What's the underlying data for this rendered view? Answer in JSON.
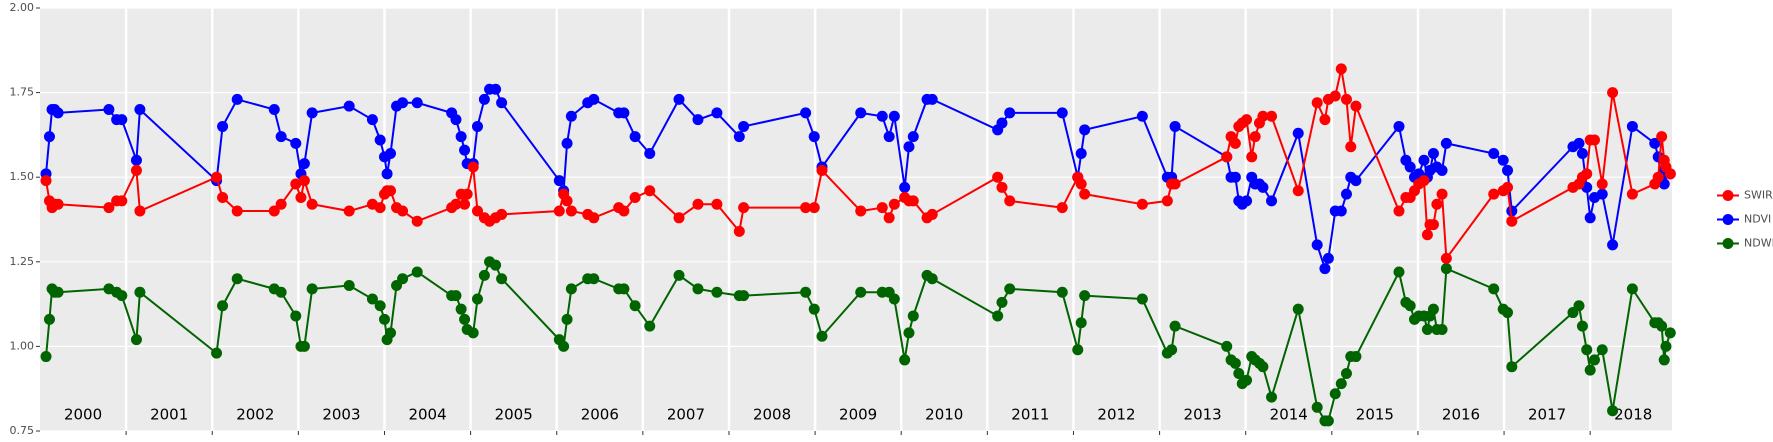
{
  "chart_data": {
    "type": "line",
    "x": [
      2000.07,
      2000.11,
      2000.14,
      2000.17,
      2000.21,
      2000.8,
      2000.89,
      2000.95,
      2001.12,
      2001.16,
      2002.05,
      2002.12,
      2002.29,
      2002.72,
      2002.8,
      2002.97,
      2003.03,
      2003.07,
      2003.16,
      2003.59,
      2003.86,
      2003.95,
      2004.0,
      2004.03,
      2004.07,
      2004.14,
      2004.21,
      2004.38,
      2004.78,
      2004.83,
      2004.89,
      2004.93,
      2004.96,
      2005.03,
      2005.08,
      2005.16,
      2005.22,
      2005.29,
      2005.36,
      2006.03,
      2006.08,
      2006.12,
      2006.17,
      2006.36,
      2006.43,
      2006.72,
      2006.78,
      2006.91,
      2007.08,
      2007.42,
      2007.64,
      2007.86,
      2008.12,
      2008.17,
      2008.89,
      2008.99,
      2009.08,
      2009.53,
      2009.78,
      2009.86,
      2009.92,
      2010.04,
      2010.09,
      2010.14,
      2010.3,
      2010.36,
      2011.12,
      2011.17,
      2011.26,
      2011.87,
      2012.05,
      2012.09,
      2012.13,
      2012.8,
      2013.09,
      2013.14,
      2013.18,
      2013.78,
      2013.83,
      2013.88,
      2013.92,
      2013.96,
      2014.01,
      2014.07,
      2014.11,
      2014.16,
      2014.2,
      2014.3,
      2014.61,
      2014.83,
      2014.92,
      2014.96,
      2015.04,
      2015.11,
      2015.17,
      2015.22,
      2015.28,
      2015.78,
      2015.86,
      2015.91,
      2015.96,
      2016.01,
      2016.07,
      2016.11,
      2016.14,
      2016.18,
      2016.22,
      2016.28,
      2016.33,
      2016.88,
      2016.99,
      2017.04,
      2017.09,
      2017.8,
      2017.87,
      2017.91,
      2017.96,
      2018.0,
      2018.05,
      2018.14,
      2018.26,
      2018.49,
      2018.75,
      2018.79,
      2018.83,
      2018.86,
      2018.88,
      2018.93
    ],
    "series": [
      {
        "name": "SWIR",
        "color": "#ff0000",
        "values": [
          1.49,
          1.43,
          1.41,
          1.42,
          1.42,
          1.41,
          1.43,
          1.43,
          1.52,
          1.4,
          1.5,
          1.44,
          1.4,
          1.4,
          1.42,
          1.48,
          1.44,
          1.49,
          1.42,
          1.4,
          1.42,
          1.41,
          1.45,
          1.46,
          1.46,
          1.41,
          1.4,
          1.37,
          1.41,
          1.42,
          1.45,
          1.42,
          1.45,
          1.53,
          1.4,
          1.38,
          1.37,
          1.38,
          1.39,
          1.4,
          1.45,
          1.43,
          1.4,
          1.39,
          1.38,
          1.41,
          1.4,
          1.44,
          1.46,
          1.38,
          1.42,
          1.42,
          1.34,
          1.41,
          1.41,
          1.41,
          1.52,
          1.4,
          1.41,
          1.38,
          1.42,
          1.44,
          1.43,
          1.43,
          1.38,
          1.39,
          1.5,
          1.47,
          1.43,
          1.41,
          1.5,
          1.48,
          1.45,
          1.42,
          1.43,
          1.48,
          1.48,
          1.56,
          1.62,
          1.6,
          1.65,
          1.66,
          1.67,
          1.56,
          1.62,
          1.66,
          1.68,
          1.68,
          1.46,
          1.72,
          1.67,
          1.73,
          1.74,
          1.82,
          1.73,
          1.59,
          1.71,
          1.4,
          1.44,
          1.44,
          1.46,
          1.48,
          1.49,
          1.33,
          1.36,
          1.36,
          1.42,
          1.45,
          1.26,
          1.45,
          1.46,
          1.47,
          1.37,
          1.47,
          1.48,
          1.5,
          1.51,
          1.61,
          1.61,
          1.48,
          1.75,
          1.45,
          1.48,
          1.5,
          1.62,
          1.55,
          1.53,
          1.51
        ]
      },
      {
        "name": "NDVI",
        "color": "#0000ff",
        "values": [
          1.51,
          1.62,
          1.7,
          1.7,
          1.69,
          1.7,
          1.67,
          1.67,
          1.55,
          1.7,
          1.49,
          1.65,
          1.73,
          1.7,
          1.62,
          1.6,
          1.51,
          1.54,
          1.69,
          1.71,
          1.67,
          1.61,
          1.56,
          1.51,
          1.57,
          1.71,
          1.72,
          1.72,
          1.69,
          1.67,
          1.62,
          1.58,
          1.54,
          1.54,
          1.65,
          1.73,
          1.76,
          1.76,
          1.72,
          1.49,
          1.46,
          1.6,
          1.68,
          1.72,
          1.73,
          1.69,
          1.69,
          1.62,
          1.57,
          1.73,
          1.67,
          1.69,
          1.62,
          1.65,
          1.69,
          1.62,
          1.53,
          1.69,
          1.68,
          1.62,
          1.68,
          1.47,
          1.59,
          1.62,
          1.73,
          1.73,
          1.64,
          1.66,
          1.69,
          1.69,
          1.5,
          1.57,
          1.64,
          1.68,
          1.5,
          1.5,
          1.65,
          1.56,
          1.5,
          1.5,
          1.43,
          1.42,
          1.43,
          1.5,
          1.48,
          1.48,
          1.47,
          1.43,
          1.63,
          1.3,
          1.23,
          1.26,
          1.4,
          1.4,
          1.45,
          1.5,
          1.49,
          1.65,
          1.55,
          1.53,
          1.5,
          1.51,
          1.55,
          1.5,
          1.52,
          1.57,
          1.53,
          1.52,
          1.6,
          1.57,
          1.55,
          1.52,
          1.4,
          1.59,
          1.6,
          1.57,
          1.47,
          1.38,
          1.44,
          1.45,
          1.3,
          1.65,
          1.6,
          1.56,
          1.49,
          1.48,
          1.52,
          1.51
        ]
      },
      {
        "name": "NDWI",
        "color": "#006400",
        "values": [
          0.97,
          1.08,
          1.17,
          1.16,
          1.16,
          1.17,
          1.16,
          1.15,
          1.02,
          1.16,
          0.98,
          1.12,
          1.2,
          1.17,
          1.16,
          1.09,
          1.0,
          1.0,
          1.17,
          1.18,
          1.14,
          1.12,
          1.08,
          1.02,
          1.04,
          1.18,
          1.2,
          1.22,
          1.15,
          1.15,
          1.11,
          1.08,
          1.05,
          1.04,
          1.14,
          1.21,
          1.25,
          1.24,
          1.2,
          1.02,
          1.0,
          1.08,
          1.17,
          1.2,
          1.2,
          1.17,
          1.17,
          1.12,
          1.06,
          1.21,
          1.17,
          1.16,
          1.15,
          1.15,
          1.16,
          1.11,
          1.03,
          1.16,
          1.16,
          1.16,
          1.14,
          0.96,
          1.04,
          1.09,
          1.21,
          1.2,
          1.09,
          1.13,
          1.17,
          1.16,
          0.99,
          1.07,
          1.15,
          1.14,
          0.98,
          0.99,
          1.06,
          1.0,
          0.96,
          0.95,
          0.92,
          0.89,
          0.9,
          0.97,
          0.96,
          0.95,
          0.94,
          0.85,
          1.11,
          0.82,
          0.78,
          0.78,
          0.86,
          0.89,
          0.92,
          0.97,
          0.97,
          1.22,
          1.13,
          1.12,
          1.08,
          1.09,
          1.09,
          1.05,
          1.09,
          1.11,
          1.05,
          1.05,
          1.23,
          1.17,
          1.11,
          1.1,
          0.94,
          1.1,
          1.12,
          1.06,
          0.99,
          0.93,
          0.96,
          0.99,
          0.81,
          1.17,
          1.07,
          1.07,
          1.06,
          0.96,
          1.0,
          1.04
        ]
      }
    ],
    "xlim": [
      2000,
      2018.95
    ],
    "xticks": [
      2001,
      2002,
      2003,
      2004,
      2005,
      2006,
      2007,
      2008,
      2009,
      2010,
      2011,
      2012,
      2013,
      2014,
      2015,
      2016,
      2017,
      2018
    ],
    "year_labels": [
      2000,
      2001,
      2002,
      2003,
      2004,
      2005,
      2006,
      2007,
      2008,
      2009,
      2010,
      2011,
      2012,
      2013,
      2014,
      2015,
      2016,
      2017,
      2018
    ],
    "ylim": [
      0.75,
      2.0
    ],
    "yticks": [
      {
        "value": 0.75,
        "label": "0.75"
      },
      {
        "value": 1.0,
        "label": "1.00"
      },
      {
        "value": 1.25,
        "label": "1.25"
      },
      {
        "value": 1.5,
        "label": "1.50"
      },
      {
        "value": 1.75,
        "label": "1.75"
      },
      {
        "value": 2.0,
        "label": "2.00"
      }
    ],
    "grid": true,
    "legend": "right"
  }
}
